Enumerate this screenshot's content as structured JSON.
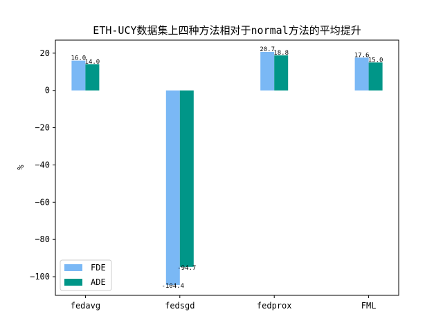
{
  "chart_data": {
    "type": "bar",
    "title": "ETH-UCY数据集上四种方法相对于normal方法的平均提升",
    "xlabel": "",
    "ylabel": "%",
    "categories": [
      "fedavg",
      "fedsgd",
      "fedprox",
      "FML"
    ],
    "series": [
      {
        "name": "FDE",
        "color": "#7ab8f5",
        "values": [
          16.0,
          -104.4,
          20.7,
          17.6
        ],
        "labels": [
          "16.0",
          "-104.4",
          "20.7",
          "17.6"
        ]
      },
      {
        "name": "ADE",
        "color": "#009688",
        "values": [
          14.0,
          -94.7,
          18.8,
          15.0
        ],
        "labels": [
          "14.0",
          "-94.7",
          "18.8",
          "15.0"
        ]
      }
    ],
    "ylim": [
      -110,
      27
    ],
    "yticks": [
      20,
      0,
      -20,
      -40,
      -60,
      -80,
      -100
    ],
    "ytick_labels": [
      "20",
      "0",
      "−20",
      "−40",
      "−60",
      "−80",
      "−100"
    ],
    "grid": false,
    "legend_position": "lower-left"
  }
}
